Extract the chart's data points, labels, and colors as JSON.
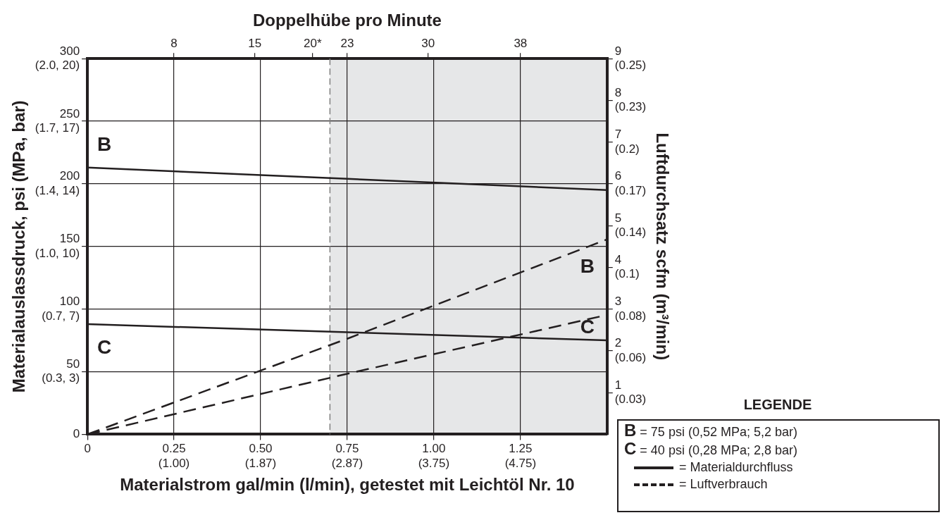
{
  "chart_data": {
    "type": "line",
    "xlabel": "Materialstrom gal/min (l/min), getestet mit Leichtöl Nr. 10",
    "x2label": "Doppelhübe pro Minute",
    "ylabel": "Materialauslassdruck, psi (MPa, bar)",
    "y2label": "Luftdurchsatz scfm (m³/min)",
    "x": [
      0,
      0.75,
      1.5
    ],
    "series": [
      {
        "color": "#231f20",
        "values": [
          213,
          204,
          195
        ],
        "line_style": "solid"
      },
      {
        "color": "#231f20",
        "values": [
          88,
          81.5,
          75
        ],
        "line_style": "solid"
      },
      {
        "color": "#231f20",
        "values": [
          0,
          2.29,
          4.67
        ],
        "line_style": "dashed",
        "axis": "y2"
      },
      {
        "color": "#231f20",
        "values": [
          0,
          1.45,
          2.86
        ],
        "line_style": "dashed",
        "axis": "y2"
      }
    ],
    "xlim": [
      0,
      1.5
    ],
    "xticks": [
      0,
      {
        "value": 0.25,
        "label": "0.25"
      },
      {
        "value": 0.5,
        "label": "0.50"
      },
      0.75,
      {
        "value": 1,
        "label": "1.00"
      },
      1.25
    ],
    "x2lim": [
      0.5,
      45.5
    ],
    "x2ticks": [
      8,
      15,
      {
        "value": 20,
        "label": "20*"
      },
      23,
      30,
      38
    ],
    "ylim": [
      0,
      300
    ],
    "yticks": [
      0,
      50,
      100,
      150,
      200,
      250,
      300
    ],
    "y2lim": [
      0,
      9
    ],
    "y2ticks": [
      1,
      2,
      3,
      4,
      5,
      6,
      7,
      8,
      9
    ],
    "bands": [
      {
        "axis": "x",
        "from": 0.7,
        "to": 1.5,
        "color": "#e6e7e8"
      }
    ],
    "ref_lines": [
      {
        "axis": "x",
        "value": 0.7,
        "color": "#808080",
        "line_style": "dashed"
      }
    ],
    "annotations": [
      "B",
      "C",
      "B",
      "C",
      "LEGENDE",
      "B = 75 psi (0,52 MPa; 5,2 bar)",
      "C = 40 psi (0,28 MPa; 2,8 bar)",
      "= Materialdurchfluss",
      "= Luftverbrauch",
      "(0.3, 3)",
      "(0.7, 7)",
      "(1.0, 10)",
      "(1.4, 14)",
      "(1.7, 17)",
      "(2.0, 20)",
      "(0.03)",
      "(0.06)",
      "(0.08)",
      "(0.1)",
      "(0.14)",
      "(0.17)",
      "(0.2)",
      "(0.23)",
      "(0.25)",
      "(1.00)",
      "(1.87)",
      "(2.87)",
      "(3.75)",
      "(4.75)"
    ],
    "grid": true,
    "legend": false,
    "marker": "none"
  }
}
